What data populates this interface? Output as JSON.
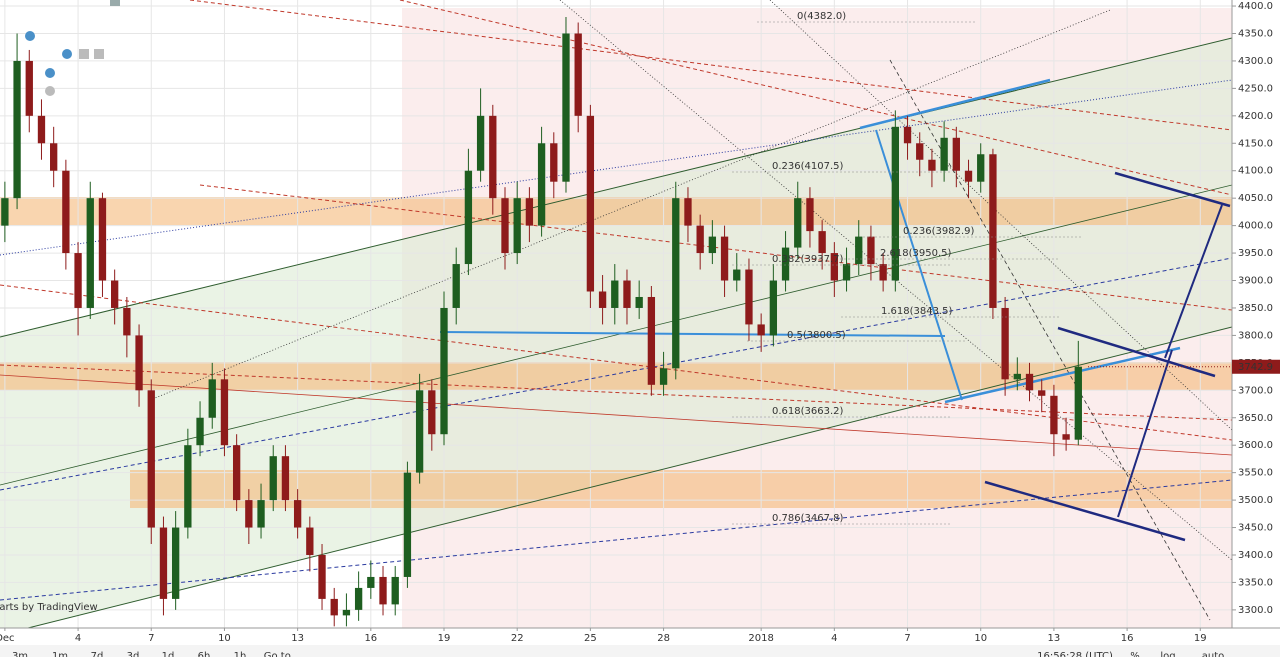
{
  "chart_data": {
    "type": "candlestick",
    "watermark": "Charts by TradingView",
    "up_color": "#1e5e20",
    "down_color": "#8e1b1b",
    "grid": true,
    "xlim": [
      -0.2,
      50.3
    ],
    "ylim": [
      3267,
      4411
    ],
    "xticks": [
      {
        "value": 0,
        "label": "Dec"
      },
      {
        "value": 3,
        "label": "4"
      },
      {
        "value": 6,
        "label": "7"
      },
      {
        "value": 9,
        "label": "10"
      },
      {
        "value": 12,
        "label": "13"
      },
      {
        "value": 15,
        "label": "16"
      },
      {
        "value": 18,
        "label": "19"
      },
      {
        "value": 21,
        "label": "22"
      },
      {
        "value": 24,
        "label": "25"
      },
      {
        "value": 27,
        "label": "28"
      },
      {
        "value": 31,
        "label": "2018"
      },
      {
        "value": 34,
        "label": "4"
      },
      {
        "value": 37,
        "label": "7"
      },
      {
        "value": 40,
        "label": "10"
      },
      {
        "value": 43,
        "label": "13"
      },
      {
        "value": 46,
        "label": "16"
      },
      {
        "value": 49,
        "label": "19"
      }
    ],
    "yticks": [
      {
        "value": 3300,
        "label": "3300.0"
      },
      {
        "value": 3350,
        "label": "3350.0"
      },
      {
        "value": 3400,
        "label": "3400.0"
      },
      {
        "value": 3450,
        "label": "3450.0"
      },
      {
        "value": 3500,
        "label": "3500.0"
      },
      {
        "value": 3550,
        "label": "3550.0"
      },
      {
        "value": 3600,
        "label": "3600.0"
      },
      {
        "value": 3650,
        "label": "3650.0"
      },
      {
        "value": 3700,
        "label": "3700.0"
      },
      {
        "value": 3750,
        "label": "3750.0"
      },
      {
        "value": 3800,
        "label": "3800.0"
      },
      {
        "value": 3850,
        "label": "3850.0"
      },
      {
        "value": 3900,
        "label": "3900.0"
      },
      {
        "value": 3950,
        "label": "3950.0"
      },
      {
        "value": 4000,
        "label": "4000.0"
      },
      {
        "value": 4050,
        "label": "4050.0"
      },
      {
        "value": 4100,
        "label": "4100.0"
      },
      {
        "value": 4150,
        "label": "4150.0"
      },
      {
        "value": 4200,
        "label": "4200.0"
      },
      {
        "value": 4250,
        "label": "4250.0"
      },
      {
        "value": 4300,
        "label": "4300.0"
      },
      {
        "value": 4350,
        "label": "4350.0"
      },
      {
        "value": 4400,
        "label": "4400.0"
      }
    ],
    "last_price": {
      "value": 3742.9,
      "label": "3742.9",
      "color": "#8e1b1b"
    },
    "x": [
      0,
      0.5,
      1,
      1.5,
      2,
      2.5,
      3,
      3.5,
      4,
      4.5,
      5,
      5.5,
      6,
      6.5,
      7,
      7.5,
      8,
      8.5,
      9,
      9.5,
      10,
      10.5,
      11,
      11.5,
      12,
      12.5,
      13,
      13.5,
      14,
      14.5,
      15,
      15.5,
      16,
      16.5,
      17,
      17.5,
      18,
      18.5,
      19,
      19.5,
      20,
      20.5,
      21,
      21.5,
      22,
      22.5,
      23,
      23.5,
      24,
      24.5,
      25,
      25.5,
      26,
      26.5,
      27,
      27.5,
      28,
      28.5,
      29,
      29.5,
      30,
      30.5,
      31,
      31.5,
      32,
      32.5,
      33,
      33.5,
      34,
      34.5,
      35,
      35.5,
      36,
      36.5,
      37,
      37.5,
      38,
      38.5,
      39,
      39.5,
      40,
      40.5,
      41,
      41.5,
      42,
      42.5,
      43,
      43.5,
      44
    ],
    "ohlc": [
      [
        4000,
        4080,
        3970,
        4050
      ],
      [
        4050,
        4350,
        4030,
        4300
      ],
      [
        4300,
        4320,
        4170,
        4200
      ],
      [
        4200,
        4230,
        4120,
        4150
      ],
      [
        4150,
        4180,
        4070,
        4100
      ],
      [
        4100,
        4120,
        3920,
        3950
      ],
      [
        3950,
        3970,
        3800,
        3850
      ],
      [
        3850,
        4080,
        3830,
        4050
      ],
      [
        4050,
        4060,
        3870,
        3900
      ],
      [
        3900,
        3920,
        3820,
        3850
      ],
      [
        3850,
        3870,
        3760,
        3800
      ],
      [
        3800,
        3820,
        3670,
        3700
      ],
      [
        3700,
        3720,
        3420,
        3450
      ],
      [
        3450,
        3470,
        3290,
        3320
      ],
      [
        3320,
        3480,
        3300,
        3450
      ],
      [
        3450,
        3630,
        3430,
        3600
      ],
      [
        3600,
        3680,
        3580,
        3650
      ],
      [
        3650,
        3750,
        3630,
        3720
      ],
      [
        3720,
        3740,
        3580,
        3600
      ],
      [
        3600,
        3620,
        3480,
        3500
      ],
      [
        3500,
        3520,
        3420,
        3450
      ],
      [
        3450,
        3530,
        3430,
        3500
      ],
      [
        3500,
        3600,
        3480,
        3580
      ],
      [
        3580,
        3600,
        3480,
        3500
      ],
      [
        3500,
        3520,
        3430,
        3450
      ],
      [
        3450,
        3470,
        3370,
        3400
      ],
      [
        3400,
        3420,
        3300,
        3320
      ],
      [
        3320,
        3340,
        3270,
        3290
      ],
      [
        3290,
        3330,
        3270,
        3300
      ],
      [
        3300,
        3370,
        3280,
        3340
      ],
      [
        3340,
        3390,
        3320,
        3360
      ],
      [
        3360,
        3380,
        3290,
        3310
      ],
      [
        3310,
        3380,
        3290,
        3360
      ],
      [
        3360,
        3570,
        3340,
        3550
      ],
      [
        3550,
        3730,
        3530,
        3700
      ],
      [
        3700,
        3720,
        3590,
        3620
      ],
      [
        3620,
        3880,
        3600,
        3850
      ],
      [
        3850,
        3960,
        3820,
        3930
      ],
      [
        3930,
        4140,
        3910,
        4100
      ],
      [
        4100,
        4250,
        4080,
        4200
      ],
      [
        4200,
        4220,
        4020,
        4050
      ],
      [
        4050,
        4070,
        3920,
        3950
      ],
      [
        3950,
        4080,
        3930,
        4050
      ],
      [
        4050,
        4070,
        3970,
        4000
      ],
      [
        4000,
        4180,
        3980,
        4150
      ],
      [
        4150,
        4170,
        4050,
        4080
      ],
      [
        4080,
        4380,
        4060,
        4350
      ],
      [
        4350,
        4370,
        4170,
        4200
      ],
      [
        4200,
        4220,
        3850,
        3880
      ],
      [
        3880,
        3910,
        3820,
        3850
      ],
      [
        3850,
        3930,
        3820,
        3900
      ],
      [
        3900,
        3920,
        3820,
        3850
      ],
      [
        3850,
        3900,
        3830,
        3870
      ],
      [
        3870,
        3890,
        3690,
        3710
      ],
      [
        3710,
        3770,
        3690,
        3740
      ],
      [
        3740,
        4080,
        3720,
        4050
      ],
      [
        4050,
        4070,
        3970,
        4000
      ],
      [
        4000,
        4020,
        3920,
        3950
      ],
      [
        3950,
        4010,
        3930,
        3980
      ],
      [
        3980,
        4000,
        3870,
        3900
      ],
      [
        3900,
        3950,
        3880,
        3920
      ],
      [
        3920,
        3940,
        3790,
        3820
      ],
      [
        3820,
        3840,
        3770,
        3800
      ],
      [
        3800,
        3930,
        3780,
        3900
      ],
      [
        3900,
        3990,
        3880,
        3960
      ],
      [
        3960,
        4080,
        3940,
        4050
      ],
      [
        4050,
        4070,
        3960,
        3990
      ],
      [
        3990,
        4010,
        3920,
        3950
      ],
      [
        3950,
        3970,
        3870,
        3900
      ],
      [
        3900,
        3960,
        3880,
        3930
      ],
      [
        3930,
        4010,
        3910,
        3980
      ],
      [
        3980,
        4000,
        3900,
        3930
      ],
      [
        3930,
        3950,
        3880,
        3900
      ],
      [
        3900,
        4210,
        3880,
        4180
      ],
      [
        4180,
        4200,
        4120,
        4150
      ],
      [
        4150,
        4170,
        4090,
        4120
      ],
      [
        4120,
        4140,
        4070,
        4100
      ],
      [
        4100,
        4190,
        4080,
        4160
      ],
      [
        4160,
        4180,
        4070,
        4100
      ],
      [
        4100,
        4120,
        4050,
        4080
      ],
      [
        4080,
        4150,
        4060,
        4130
      ],
      [
        4130,
        4140,
        3830,
        3850
      ],
      [
        3850,
        3870,
        3690,
        3720
      ],
      [
        3720,
        3760,
        3700,
        3730
      ],
      [
        3730,
        3750,
        3680,
        3700
      ],
      [
        3700,
        3720,
        3660,
        3690
      ],
      [
        3690,
        3710,
        3580,
        3620
      ],
      [
        3620,
        3650,
        3590,
        3610
      ],
      [
        3610,
        3790,
        3600,
        3743
      ]
    ],
    "annotations": [
      {
        "text": "0(4382.0)",
        "color": "#222222"
      },
      {
        "text": "0.236(4107.5)",
        "color": "#222222"
      },
      {
        "text": "0.382(3937.7)",
        "color": "#222222"
      },
      {
        "text": "0.5(3800.5)",
        "color": "#222222"
      },
      {
        "text": "0.618(3663.2)",
        "color": "#222222"
      },
      {
        "text": "0.786(3467.8)",
        "color": "#222222"
      },
      {
        "text": "0.236(3982.9)",
        "color": "#c0392b"
      },
      {
        "text": "2.618(3950.5)",
        "color": "#5b3c8c"
      },
      {
        "text": "1.618(3843.5)",
        "color": "#2b55c5"
      }
    ],
    "toolbar": [
      "3m",
      "1m",
      "7d",
      "3d",
      "1d",
      "6h",
      "1h",
      "Go to..."
    ],
    "toolbar_right": [
      "16:56:28 (UTC)",
      "%",
      "log",
      "auto"
    ]
  }
}
